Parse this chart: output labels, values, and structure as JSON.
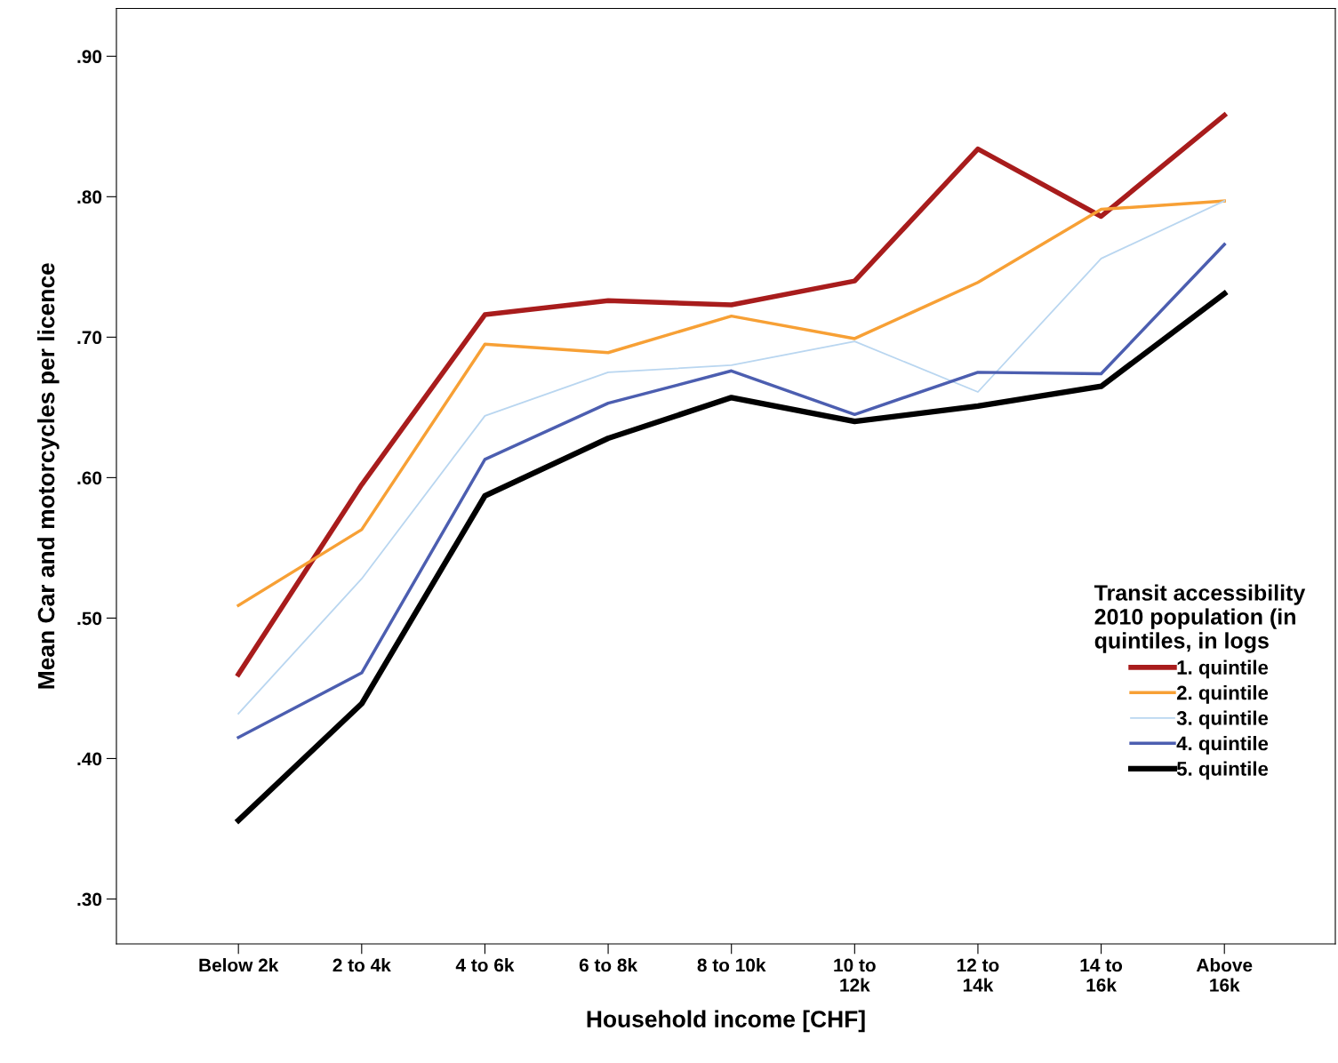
{
  "chart_data": {
    "type": "line",
    "xlabel": "Household income [CHF]",
    "ylabel": "Mean Car and motorcycles per licence",
    "legend_title": "Transit accessibility\n2010 population (in\nquintiles, in logs",
    "categories": [
      "Below 2k",
      "2 to 4k",
      "4 to 6k",
      "6 to 8k",
      "8 to 10k",
      "10 to\n12k",
      "12 to\n14k",
      "14 to\n16k",
      "Above\n16k"
    ],
    "series": [
      {
        "name": "1. quintile",
        "color": "#a81c1c",
        "values": [
          0.46,
          0.595,
          0.716,
          0.726,
          0.723,
          0.74,
          0.834,
          0.786,
          0.858
        ]
      },
      {
        "name": "2. quintile",
        "color": "#f7a035",
        "values": [
          0.509,
          0.563,
          0.695,
          0.689,
          0.715,
          0.699,
          0.739,
          0.791,
          0.797
        ]
      },
      {
        "name": "3. quintile",
        "color": "#b9d6f0",
        "values": [
          0.432,
          0.528,
          0.644,
          0.675,
          0.68,
          0.697,
          0.661,
          0.756,
          0.797
        ]
      },
      {
        "name": "4. quintile",
        "color": "#4c5eb0",
        "values": [
          0.415,
          0.461,
          0.613,
          0.653,
          0.676,
          0.645,
          0.675,
          0.674,
          0.766
        ]
      },
      {
        "name": "5. quintile",
        "color": "#000000",
        "values": [
          0.356,
          0.439,
          0.587,
          0.628,
          0.657,
          0.64,
          0.651,
          0.665,
          0.731
        ]
      }
    ],
    "ylim": [
      0.268,
      0.934
    ],
    "yticks": [
      {
        "value": 0.3,
        "label": ".30"
      },
      {
        "value": 0.4,
        "label": ".40"
      },
      {
        "value": 0.5,
        "label": ".50"
      },
      {
        "value": 0.6,
        "label": ".60"
      },
      {
        "value": 0.7,
        "label": ".70"
      },
      {
        "value": 0.8,
        "label": ".80"
      },
      {
        "value": 0.9,
        "label": ".90"
      }
    ],
    "grid": false,
    "legend": "right",
    "marker": "none",
    "line_style": "solid"
  }
}
